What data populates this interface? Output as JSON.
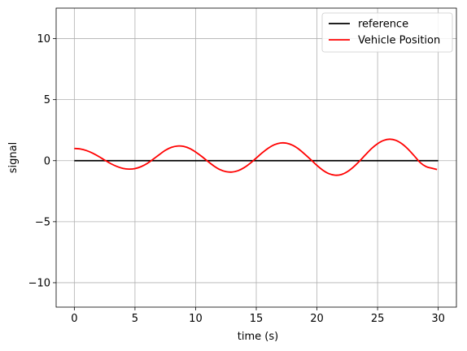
{
  "chart_data": {
    "type": "line",
    "title": "",
    "xlabel": "time (s)",
    "ylabel": "signal",
    "xlim": [
      -1.5,
      31.5
    ],
    "ylim": [
      -12.0,
      12.5
    ],
    "xticks": [
      0,
      5,
      10,
      15,
      20,
      25,
      30
    ],
    "xtick_labels": [
      "0",
      "5",
      "10",
      "15",
      "20",
      "25",
      "30"
    ],
    "yticks": [
      -10,
      -5,
      0,
      5,
      10
    ],
    "ytick_labels": [
      "−10",
      "−5",
      "0",
      "5",
      "10"
    ],
    "grid": true,
    "legend_position": "top-right",
    "series": [
      {
        "name": "reference",
        "color": "#000000",
        "x": [
          0,
          30
        ],
        "y": [
          0,
          0
        ]
      },
      {
        "name": "Vehicle Position",
        "color": "#ff0000",
        "x": [
          0,
          0.5,
          1,
          1.5,
          2,
          2.5,
          3,
          3.5,
          4,
          4.5,
          5,
          5.5,
          6,
          6.5,
          7,
          7.5,
          8,
          8.5,
          9,
          9.5,
          10,
          10.5,
          11,
          11.5,
          12,
          12.5,
          13,
          13.5,
          14,
          14.5,
          15,
          15.5,
          16,
          16.5,
          17,
          17.5,
          18,
          18.5,
          19,
          19.5,
          20,
          20.5,
          21,
          21.5,
          22,
          22.5,
          23,
          23.5,
          24,
          24.5,
          25,
          25.5,
          26,
          26.5,
          27,
          27.5,
          28,
          28.5,
          29,
          29.5,
          29.9
        ],
        "y": [
          1.0,
          0.96,
          0.83,
          0.62,
          0.35,
          0.05,
          -0.24,
          -0.47,
          -0.63,
          -0.69,
          -0.65,
          -0.49,
          -0.23,
          0.12,
          0.49,
          0.85,
          1.09,
          1.2,
          1.17,
          1.0,
          0.71,
          0.35,
          -0.05,
          -0.43,
          -0.73,
          -0.9,
          -0.93,
          -0.82,
          -0.57,
          -0.21,
          0.22,
          0.65,
          1.03,
          1.31,
          1.45,
          1.43,
          1.26,
          0.95,
          0.53,
          0.08,
          -0.39,
          -0.79,
          -1.07,
          -1.19,
          -1.14,
          -0.91,
          -0.53,
          -0.05,
          0.48,
          0.99,
          1.39,
          1.66,
          1.76,
          1.67,
          1.39,
          0.96,
          0.42,
          -0.14,
          -0.49,
          -0.62,
          -0.72
        ]
      }
    ]
  }
}
